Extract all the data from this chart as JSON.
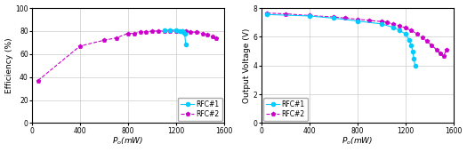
{
  "chart1": {
    "xlabel": "$P_o$(mW)",
    "ylabel": "Efficiency (%)",
    "xlim": [
      0,
      1600
    ],
    "ylim": [
      0,
      100
    ],
    "xticks": [
      0,
      400,
      800,
      1200,
      1600
    ],
    "yticks": [
      0,
      20,
      40,
      60,
      80,
      100
    ],
    "legend_loc": "lower right",
    "rfc1": {
      "x": [
        1100,
        1150,
        1200,
        1230,
        1250,
        1260,
        1270,
        1280
      ],
      "y": [
        81,
        81,
        81,
        80,
        80,
        79,
        78,
        68
      ],
      "color": "#00ccff",
      "marker": "o",
      "linestyle": "-",
      "label": "RFC#1",
      "markersize": 3.0,
      "lw": 0.8
    },
    "rfc2": {
      "x": [
        50,
        400,
        600,
        700,
        800,
        850,
        900,
        950,
        1000,
        1050,
        1100,
        1150,
        1200,
        1250,
        1280,
        1320,
        1370,
        1420,
        1460,
        1500,
        1530
      ],
      "y": [
        37,
        67,
        72,
        74,
        78,
        78,
        79,
        79,
        80,
        80,
        80,
        80,
        80,
        80,
        80,
        79,
        79,
        78,
        77,
        75,
        74
      ],
      "color": "#cc00cc",
      "marker": "p",
      "linestyle": "--",
      "label": "RFC#2",
      "markersize": 3.0,
      "lw": 0.8
    }
  },
  "chart2": {
    "xlabel": "$P_o$(mW)",
    "ylabel": "Output Voltage (V)",
    "xlim": [
      0,
      1600
    ],
    "ylim": [
      0,
      8
    ],
    "xticks": [
      0,
      400,
      800,
      1200,
      1600
    ],
    "yticks": [
      0,
      2,
      4,
      6,
      8
    ],
    "legend_loc": "lower left",
    "rfc1": {
      "x": [
        50,
        400,
        600,
        800,
        1000,
        1100,
        1150,
        1200,
        1230,
        1250,
        1260,
        1270,
        1280
      ],
      "y": [
        7.55,
        7.45,
        7.3,
        7.1,
        6.9,
        6.65,
        6.45,
        6.2,
        5.8,
        5.4,
        5.0,
        4.5,
        4.0
      ],
      "color": "#00ccff",
      "marker": "o",
      "linestyle": "-",
      "label": "RFC#1",
      "markersize": 3.0,
      "lw": 0.8
    },
    "rfc2": {
      "x": [
        50,
        200,
        400,
        600,
        700,
        800,
        900,
        1000,
        1050,
        1100,
        1150,
        1200,
        1250,
        1300,
        1340,
        1380,
        1420,
        1460,
        1490,
        1520,
        1540
      ],
      "y": [
        7.65,
        7.6,
        7.48,
        7.38,
        7.3,
        7.22,
        7.14,
        7.06,
        7.0,
        6.88,
        6.76,
        6.62,
        6.44,
        6.2,
        5.95,
        5.7,
        5.4,
        5.1,
        4.85,
        4.65,
        5.1
      ],
      "color": "#cc00cc",
      "marker": "p",
      "linestyle": "--",
      "label": "RFC#2",
      "markersize": 3.0,
      "lw": 0.8
    }
  },
  "background_color": "#ffffff",
  "grid_color": "#cccccc",
  "figsize": [
    5.25,
    1.71
  ],
  "dpi": 100
}
